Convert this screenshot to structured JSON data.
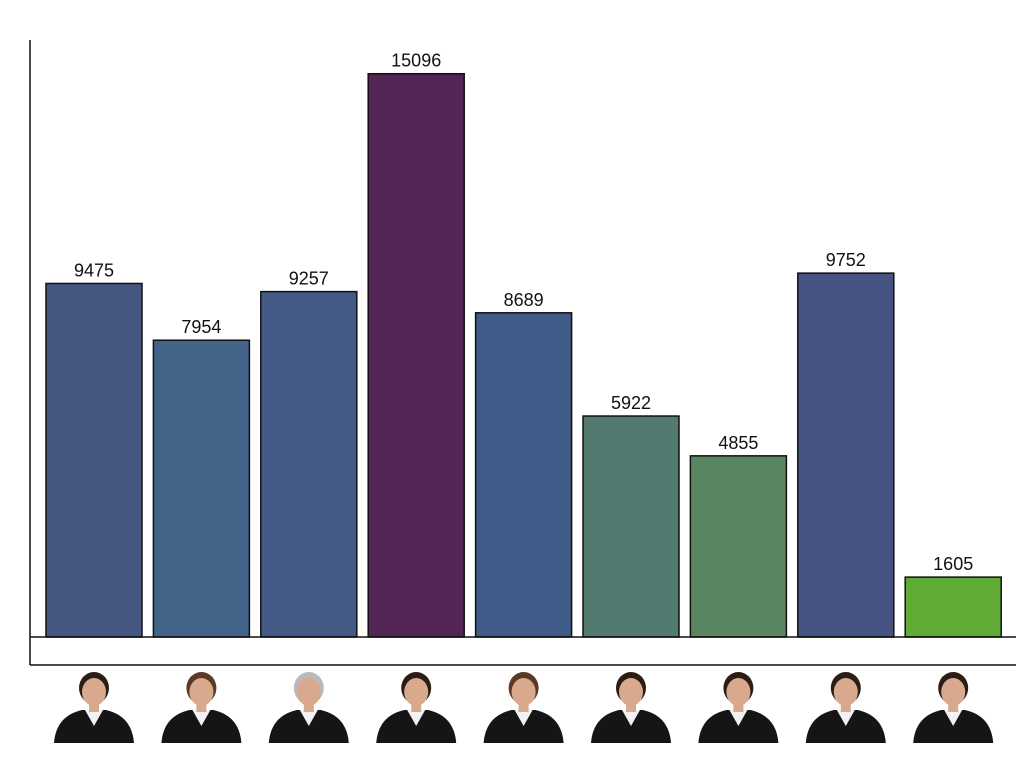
{
  "chart_data": {
    "type": "bar",
    "categories": [
      "",
      "",
      "",
      "",
      "",
      "",
      "",
      "",
      ""
    ],
    "values": [
      9475,
      7954,
      9257,
      15096,
      8689,
      5922,
      4855,
      9752,
      1605
    ],
    "colors": [
      "#455681",
      "#416488",
      "#435a87",
      "#532455",
      "#3f5b87",
      "#527a70",
      "#5a8563",
      "#475382",
      "#60aa36"
    ],
    "category_images": [
      "justice-portrait-icon",
      "justice-portrait-icon",
      "justice-portrait-icon",
      "justice-portrait-icon",
      "justice-portrait-icon",
      "justice-portrait-icon",
      "justice-portrait-icon",
      "justice-portrait-icon",
      "justice-portrait-icon"
    ],
    "title": "",
    "xlabel": "",
    "ylabel": "",
    "ylim": [
      0,
      16000
    ],
    "grid": false,
    "legend": "none"
  }
}
